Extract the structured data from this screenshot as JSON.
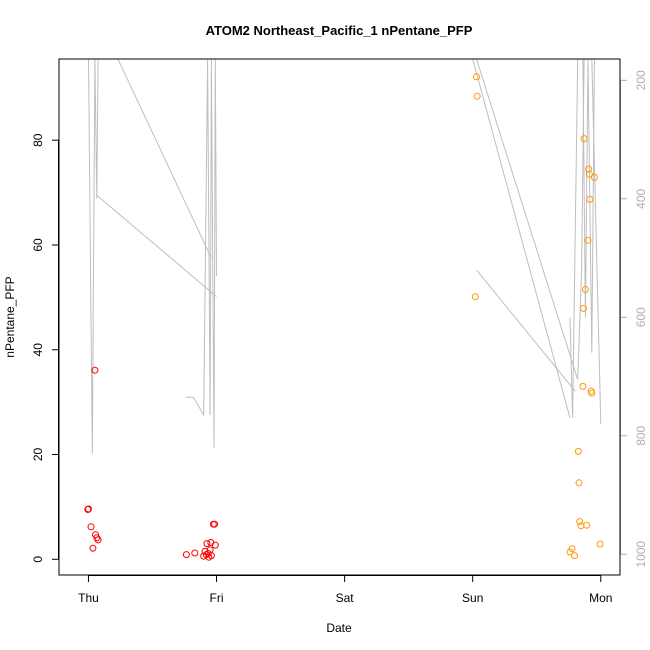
{
  "chart_data": {
    "type": "scatter",
    "title": "ATOM2 Northeast_Pacific_1 nPentane_PFP",
    "xlabel": "Date",
    "ylabel": "nPentane_PFP",
    "x_ticks": [
      {
        "label": "Thu",
        "value": 0
      },
      {
        "label": "Fri",
        "value": 1
      },
      {
        "label": "Sat",
        "value": 2
      },
      {
        "label": "Sun",
        "value": 3
      },
      {
        "label": "Mon",
        "value": 4
      }
    ],
    "xlim": [
      -0.23,
      4.15
    ],
    "ylim": [
      -3,
      95.5
    ],
    "y_ticks": [
      0,
      20,
      40,
      60,
      80
    ],
    "y2_ticks": [
      200,
      400,
      600,
      800,
      1000
    ],
    "y2lim": [
      1035,
      164
    ],
    "colors": {
      "series_red": "#ff0000",
      "series_orange": "#ff9900",
      "line_gray": "#bebebe"
    },
    "series": [
      {
        "color": "#ff0000",
        "points": [
          [
            -0.005,
            9.5
          ],
          [
            0,
            9.6
          ],
          [
            0.02,
            6.2
          ],
          [
            0.035,
            2.1
          ],
          [
            0.05,
            36.1
          ],
          [
            0.055,
            4.7
          ],
          [
            0.065,
            4.1
          ],
          [
            0.075,
            3.7
          ],
          [
            0.765,
            0.9
          ],
          [
            0.83,
            1.2
          ],
          [
            0.9,
            0.6
          ],
          [
            0.91,
            1.5
          ],
          [
            0.92,
            0.9
          ],
          [
            0.925,
            3.0
          ],
          [
            0.935,
            1.1
          ],
          [
            0.94,
            0.4
          ],
          [
            0.95,
            1.8
          ],
          [
            0.955,
            3.2
          ],
          [
            0.96,
            0.7
          ],
          [
            0.975,
            6.7
          ],
          [
            0.985,
            6.7
          ],
          [
            0.99,
            2.7
          ]
        ]
      },
      {
        "color": "#ff9900",
        "points": [
          [
            3.02,
            50.1
          ],
          [
            3.03,
            92.1
          ],
          [
            3.035,
            88.4
          ],
          [
            3.76,
            1.4
          ],
          [
            3.775,
            2.0
          ],
          [
            3.795,
            0.7
          ],
          [
            3.825,
            20.6
          ],
          [
            3.83,
            14.6
          ],
          [
            3.835,
            7.2
          ],
          [
            3.845,
            6.4
          ],
          [
            3.86,
            33.0
          ],
          [
            3.865,
            47.9
          ],
          [
            3.87,
            80.3
          ],
          [
            3.88,
            51.5
          ],
          [
            3.89,
            6.5
          ],
          [
            3.9,
            60.9
          ],
          [
            3.905,
            74.5
          ],
          [
            3.91,
            73.5
          ],
          [
            3.915,
            68.7
          ],
          [
            3.925,
            32.1
          ],
          [
            3.93,
            31.7
          ],
          [
            3.95,
            72.9
          ],
          [
            3.995,
            2.9
          ]
        ]
      }
    ],
    "altitude_segments": [
      [
        [
          0.0,
          30
        ],
        [
          0.03,
          830
        ],
        [
          0.05,
          30
        ],
        [
          0.065,
          400
        ],
        [
          0.075,
          30
        ]
      ],
      [
        [
          0.23,
          30
        ],
        [
          0.96,
          500
        ]
      ],
      [
        [
          0.07,
          395
        ],
        [
          1.0,
          565
        ]
      ],
      [
        [
          0.76,
          735
        ],
        [
          0.82,
          735
        ],
        [
          0.9,
          765
        ],
        [
          0.93,
          30
        ],
        [
          0.95,
          765
        ],
        [
          0.96,
          30
        ],
        [
          0.98,
          820
        ],
        [
          0.99,
          30
        ],
        [
          1.0,
          530
        ]
      ],
      [
        [
          3.03,
          520
        ],
        [
          3.8,
          725
        ]
      ],
      [
        [
          3.03,
          30
        ],
        [
          3.82,
          705
        ],
        [
          3.85,
          520
        ],
        [
          3.87,
          30
        ],
        [
          3.9,
          30
        ],
        [
          3.93,
          30
        ],
        [
          4.0,
          780
        ]
      ],
      [
        [
          3.0,
          40
        ],
        [
          3.76,
          770
        ]
      ],
      [
        [
          3.76,
          600
        ],
        [
          3.78,
          770
        ],
        [
          3.82,
          30
        ],
        [
          3.86,
          30
        ],
        [
          3.88,
          600
        ],
        [
          3.9,
          30
        ],
        [
          3.93,
          660
        ],
        [
          3.95,
          30
        ]
      ]
    ]
  }
}
